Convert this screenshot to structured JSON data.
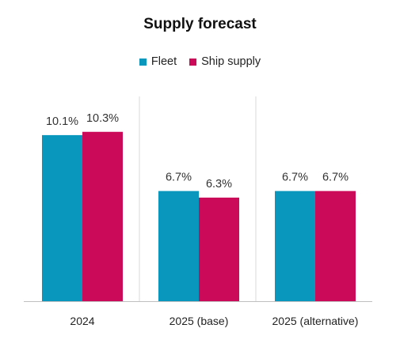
{
  "chart_data": {
    "type": "bar",
    "title": "Supply forecast",
    "categories": [
      "2024",
      "2025 (base)",
      "2025 (alternative)"
    ],
    "series": [
      {
        "name": "Fleet",
        "color": "#0a97bd",
        "values": [
          10.1,
          6.7,
          6.7
        ],
        "labels": [
          "10.1%",
          "6.7%",
          "6.7%"
        ]
      },
      {
        "name": "Ship supply",
        "color": "#cc0a5a",
        "values": [
          10.3,
          6.3,
          6.7
        ],
        "labels": [
          "10.3%",
          "6.3%",
          "6.7%"
        ]
      }
    ],
    "ylim": [
      0,
      12.5
    ],
    "unit": "%",
    "legend_position": "top",
    "grid": false,
    "category_separators": true
  }
}
